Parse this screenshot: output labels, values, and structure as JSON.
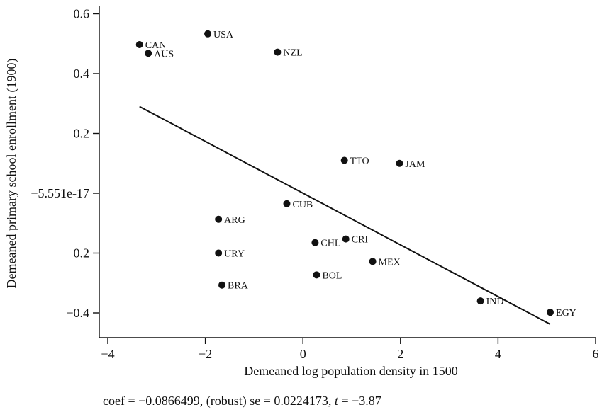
{
  "chart_data": {
    "type": "scatter",
    "xlabel": "Demeaned log population density in 1500",
    "ylabel": "Demeaned primary school enrollment (1900)",
    "xlim": [
      -4.2,
      6.0
    ],
    "ylim": [
      -0.48,
      0.64
    ],
    "x_ticks": [
      -4,
      -2,
      0,
      2,
      4,
      6
    ],
    "x_tick_labels": [
      "−4",
      "−2",
      "0",
      "2",
      "4",
      "6"
    ],
    "y_ticks": [
      0.6,
      0.4,
      0.2,
      0.0,
      -0.2,
      -0.4
    ],
    "y_tick_labels": [
      "0.6",
      "0.4",
      "0.2",
      "−5.551e-17",
      "−0.2",
      "−0.4"
    ],
    "points": [
      {
        "label": "USA",
        "x": -1.95,
        "y": 0.533
      },
      {
        "label": "CAN",
        "x": -3.35,
        "y": 0.497
      },
      {
        "label": "AUS",
        "x": -3.17,
        "y": 0.468
      },
      {
        "label": "NZL",
        "x": -0.52,
        "y": 0.472
      },
      {
        "label": "TTO",
        "x": 0.85,
        "y": 0.11
      },
      {
        "label": "JAM",
        "x": 1.98,
        "y": 0.1
      },
      {
        "label": "CUB",
        "x": -0.33,
        "y": -0.035
      },
      {
        "label": "ARG",
        "x": -1.73,
        "y": -0.087
      },
      {
        "label": "CRI",
        "x": 0.88,
        "y": -0.153
      },
      {
        "label": "CHL",
        "x": 0.25,
        "y": -0.165
      },
      {
        "label": "URY",
        "x": -1.73,
        "y": -0.2
      },
      {
        "label": "MEX",
        "x": 1.43,
        "y": -0.228
      },
      {
        "label": "BOL",
        "x": 0.28,
        "y": -0.273
      },
      {
        "label": "BRA",
        "x": -1.66,
        "y": -0.307
      },
      {
        "label": "IND",
        "x": 3.64,
        "y": -0.36
      },
      {
        "label": "EGY",
        "x": 5.07,
        "y": -0.398
      }
    ],
    "fit_line": {
      "x": [
        -3.35,
        5.07
      ],
      "y": [
        0.29,
        -0.438
      ]
    },
    "footnote_parts": [
      "coef = −0.0866499, (robust) se = 0.0224173, ",
      "t",
      " = −3.87"
    ]
  }
}
